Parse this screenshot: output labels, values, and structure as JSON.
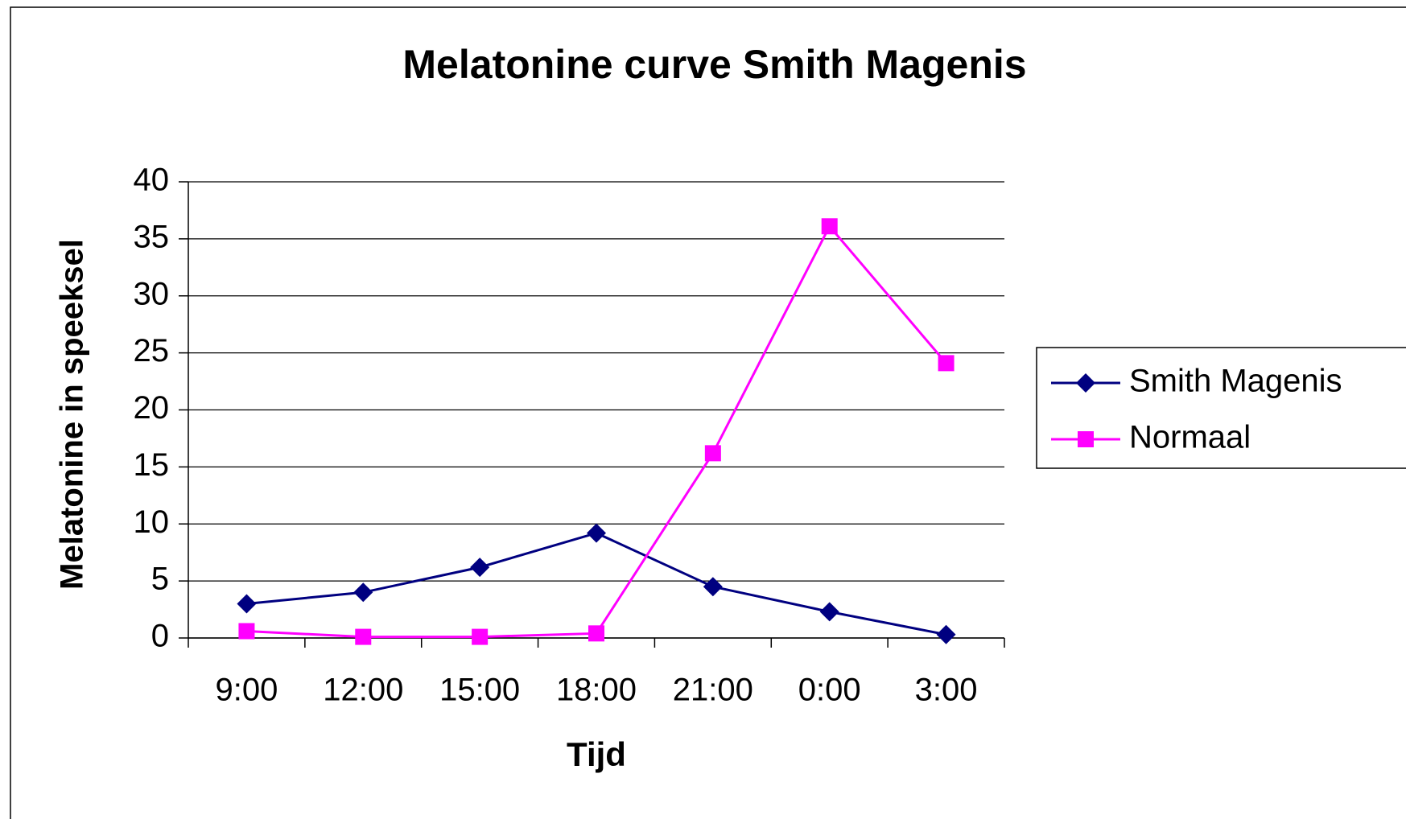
{
  "chart_data": {
    "type": "line",
    "title": "Melatonine curve Smith Magenis",
    "x_label": "Tijd",
    "y_label": "Melatonine in speeksel",
    "categories": [
      "9:00",
      "12:00",
      "15:00",
      "18:00",
      "21:00",
      "0:00",
      "3:00"
    ],
    "series": [
      {
        "name": "Smith Magenis",
        "color": "#000080",
        "marker": "diamond",
        "values": [
          3,
          4,
          6.2,
          9.2,
          4.5,
          2.3,
          0.3
        ]
      },
      {
        "name": "Normaal",
        "color": "#ff00ff",
        "marker": "square",
        "values": [
          0.6,
          0.1,
          0.1,
          0.4,
          16.2,
          36.1,
          24.1
        ]
      }
    ],
    "ylim": [
      0,
      40
    ],
    "yticks": [
      0,
      5,
      10,
      15,
      20,
      25,
      30,
      35,
      40
    ],
    "grid": true,
    "legend": "right"
  }
}
